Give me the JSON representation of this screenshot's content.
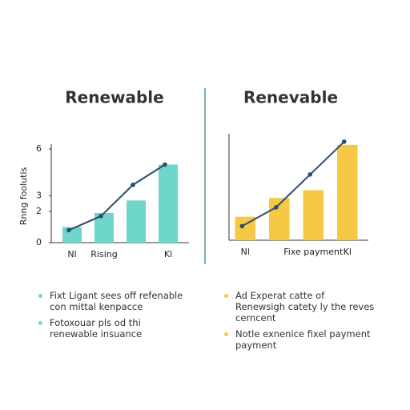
{
  "chart_data": [
    {
      "type": "bar",
      "title": "Renewable",
      "ylabel": "Rnng foolutis",
      "categories": [
        "Nl",
        "Rising",
        null,
        "Kl"
      ],
      "series": [
        {
          "name": "bars",
          "color": "#6fd6cc",
          "values": [
            1,
            1.9,
            2.7,
            5
          ]
        },
        {
          "name": "line",
          "type": "line",
          "color": "#2a4e6e",
          "values": [
            0.8,
            1.7,
            3.7,
            5
          ]
        }
      ],
      "ylim": [
        0,
        6
      ],
      "yticks": [
        0,
        2,
        3,
        6
      ],
      "notes": [
        "Fixt Ligant sees off refenable con mittal kenpacce",
        "Fotoxouar pls od thi renewable insuance"
      ],
      "note_color": "#6fd6cc"
    },
    {
      "type": "bar",
      "title": "Renevable",
      "categories": [
        "Nl",
        null,
        "Fixe payment",
        "Kl"
      ],
      "series": [
        {
          "name": "bars",
          "color": "#f7c843",
          "values": [
            1.5,
            2.7,
            3.2,
            6.1
          ]
        },
        {
          "name": "line",
          "type": "line",
          "color": "#2a4e6e",
          "values": [
            0.9,
            2.1,
            4.2,
            6.3
          ]
        }
      ],
      "ylim": [
        0,
        6.5
      ],
      "notes": [
        "Ad Experat catte of Renewsigh catety ly the reves cerncent",
        "Notle exnenice fixel payment payment"
      ],
      "note_color": "#f7c843"
    }
  ]
}
